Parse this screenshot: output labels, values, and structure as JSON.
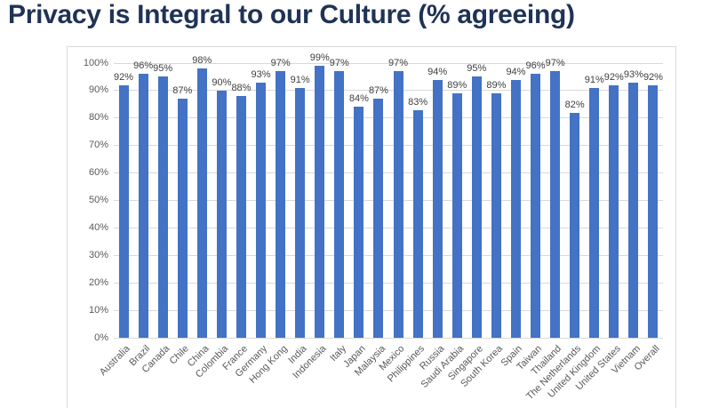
{
  "slide": {
    "title": "Privacy is Integral to our Culture (% agreeing)"
  },
  "chart_data": {
    "type": "bar",
    "title": "Privacy is Integral to our Culture (% agreeing)",
    "categories": [
      "Australia",
      "Brazil",
      "Canada",
      "Chile",
      "China",
      "Colombia",
      "France",
      "Germany",
      "Hong Kong",
      "India",
      "Indonesia",
      "Italy",
      "Japan",
      "Malaysia",
      "Mexico",
      "Philippines",
      "Russia",
      "Saudi Arabia",
      "Singapore",
      "South Korea",
      "Spain",
      "Taiwan",
      "Thailand",
      "The Netherlands",
      "United Kingdom",
      "United States",
      "Vietnam",
      "Overall"
    ],
    "values": [
      92,
      96,
      95,
      87,
      98,
      90,
      88,
      93,
      97,
      91,
      99,
      97,
      84,
      87,
      97,
      83,
      94,
      89,
      95,
      89,
      94,
      96,
      97,
      82,
      91,
      92,
      93,
      92
    ],
    "data_labels": [
      "92%",
      "96%",
      "95%",
      "87%",
      "98%",
      "90%",
      "88%",
      "93%",
      "97%",
      "91%",
      "99%",
      "97%",
      "84%",
      "87%",
      "97%",
      "83%",
      "94%",
      "89%",
      "95%",
      "89%",
      "94%",
      "96%",
      "97%",
      "82%",
      "91%",
      "92%",
      "93%",
      "92%"
    ],
    "y_ticks": [
      "0%",
      "10%",
      "20%",
      "30%",
      "40%",
      "50%",
      "60%",
      "70%",
      "80%",
      "90%",
      "100%"
    ],
    "ylim": [
      0,
      100
    ],
    "grid": true,
    "legend": false,
    "xlabel": "",
    "ylabel": ""
  },
  "colors": {
    "bar": "#4472c4",
    "title": "#1f3355",
    "data_label": "#404040",
    "axis_label": "#595959",
    "gridline": "#d9d9d9",
    "chart_border": "#d9d9d9"
  }
}
